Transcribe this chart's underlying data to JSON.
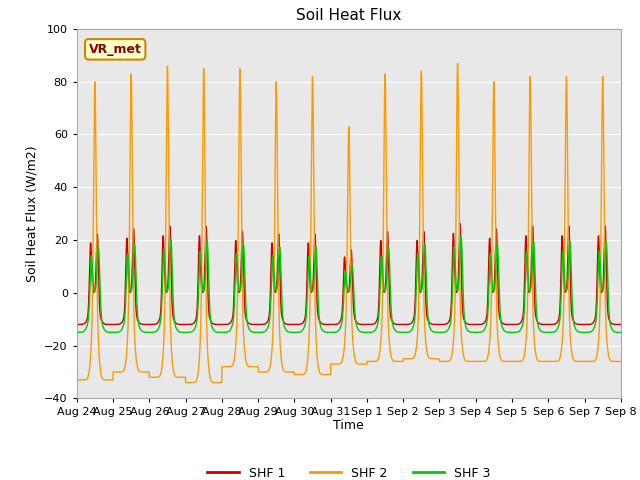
{
  "title": "Soil Heat Flux",
  "ylabel": "Soil Heat Flux (W/m2)",
  "xlabel": "Time",
  "ylim": [
    -40,
    100
  ],
  "yticks": [
    -40,
    -20,
    0,
    20,
    40,
    60,
    80,
    100
  ],
  "vr_label": "VR_met",
  "colors": {
    "SHF 1": "#cc0000",
    "SHF 2": "#ff9900",
    "SHF 3": "#00cc00"
  },
  "bg_color": "#e8e8e8",
  "fig_bg": "#ffffff",
  "n_days": 15,
  "points_per_day": 288,
  "xtick_labels": [
    "Aug 24",
    "Aug 25",
    "Aug 26",
    "Aug 27",
    "Aug 28",
    "Aug 29",
    "Aug 30",
    "Aug 31",
    "Sep 1",
    "Sep 2",
    "Sep 3",
    "Sep 4",
    "Sep 5",
    "Sep 6",
    "Sep 7",
    "Sep 8"
  ],
  "shf2_peaks": [
    80,
    83,
    86,
    85,
    85,
    80,
    82,
    63,
    83,
    84,
    87,
    80,
    82,
    82,
    82
  ],
  "shf2_troughs": [
    -33,
    -30,
    -32,
    -34,
    -28,
    -30,
    -31,
    -27,
    -26,
    -25,
    -26,
    -26,
    -26,
    -26,
    -26
  ],
  "shf1_peaks": [
    26,
    28,
    29,
    29,
    27,
    26,
    26,
    20,
    27,
    27,
    30,
    28,
    29,
    29,
    29
  ],
  "shf3_peaks": [
    22,
    23,
    25,
    24,
    23,
    22,
    22,
    15,
    22,
    23,
    26,
    23,
    24,
    24,
    24
  ],
  "title_fontsize": 11,
  "axis_fontsize": 9,
  "tick_fontsize": 8
}
